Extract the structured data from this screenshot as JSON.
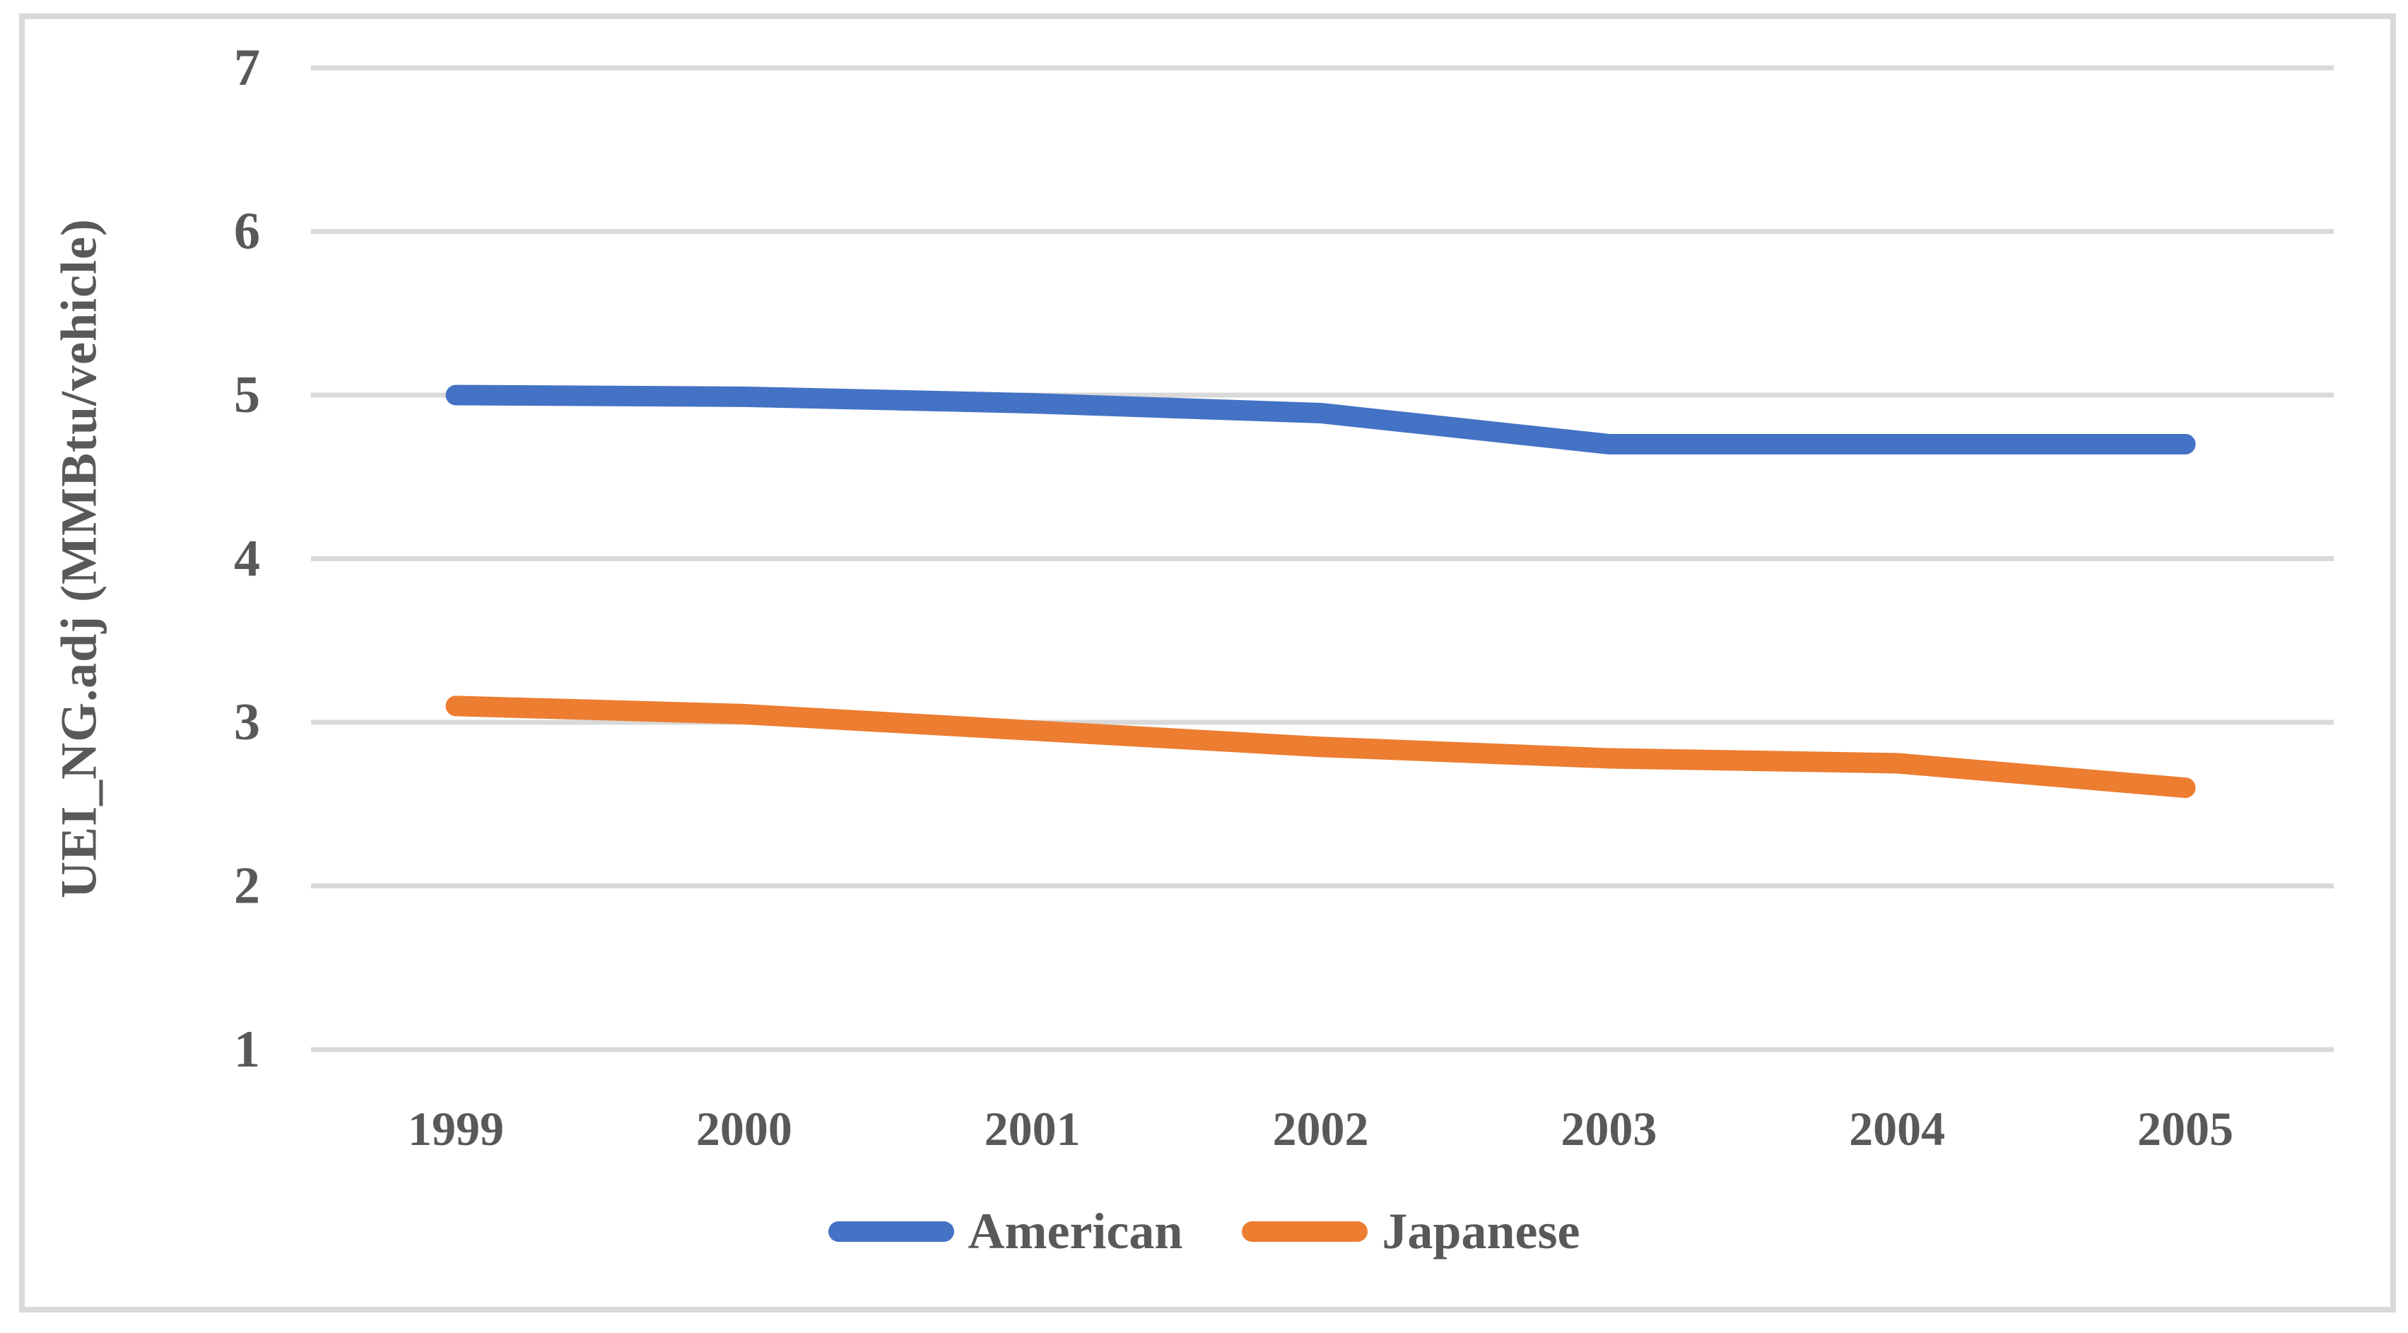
{
  "chart_data": {
    "type": "line",
    "title": "",
    "ylabel": "UEI_NG.adj (MMBtu/vehicle)",
    "xlabel": "",
    "categories": [
      "1999",
      "2000",
      "2001",
      "2002",
      "2003",
      "2004",
      "2005"
    ],
    "series": [
      {
        "name": "American",
        "color": "#4472C4",
        "values": [
          5.0,
          4.99,
          4.95,
          4.89,
          4.7,
          4.7,
          4.7
        ]
      },
      {
        "name": "Japanese",
        "color": "#ED7D31",
        "values": [
          3.1,
          3.05,
          2.95,
          2.85,
          2.78,
          2.75,
          2.6
        ]
      }
    ],
    "y_ticks": [
      7,
      6,
      5,
      4,
      3,
      2,
      1
    ],
    "ylim": [
      1,
      7
    ],
    "grid": true,
    "legend_position": "bottom"
  },
  "colors": {
    "grid": "#D9D9D9",
    "frame": "#D9D9D9",
    "text": "#595959",
    "american": "#4472C4",
    "japanese": "#ED7D31",
    "background": "#FFFFFF"
  }
}
